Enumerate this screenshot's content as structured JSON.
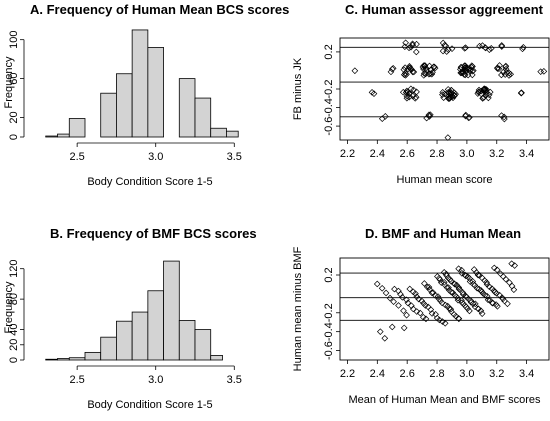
{
  "chart_data": [
    {
      "id": "A",
      "type": "bar",
      "title": "A. Frequency of Human Mean BCS scores",
      "xlabel": "Body Condition Score 1-5",
      "ylabel": "Frequency",
      "xlim": [
        2.2,
        3.6
      ],
      "ylim": [
        0,
        112
      ],
      "x_ticks": [
        2.5,
        3.0,
        3.5
      ],
      "x_tick_labels": [
        "2.5",
        "3.0",
        "3.5"
      ],
      "y_ticks": [
        0,
        20,
        60,
        100
      ],
      "y_tick_labels": [
        "0",
        "20",
        "60",
        "100"
      ],
      "bin_edges": [
        2.3,
        2.375,
        2.45,
        2.55,
        2.65,
        2.75,
        2.85,
        2.95,
        3.05,
        3.15,
        3.25,
        3.35,
        3.45
      ],
      "values": [
        1,
        3,
        19,
        0,
        45,
        65,
        110,
        92,
        0,
        60,
        40,
        9,
        6
      ],
      "grid": false
    },
    {
      "id": "B",
      "type": "bar",
      "title": "B. Frequency of BMF BCS scores",
      "xlabel": "Body Condition Score 1-5",
      "ylabel": "Frequency",
      "xlim": [
        2.2,
        3.6
      ],
      "ylim": [
        0,
        138
      ],
      "x_ticks": [
        2.5,
        3.0,
        3.5
      ],
      "x_tick_labels": [
        "2.5",
        "3.0",
        "3.5"
      ],
      "y_ticks": [
        0,
        20,
        40,
        80,
        120
      ],
      "y_tick_labels": [
        "0",
        "20",
        "40",
        "80",
        "120"
      ],
      "bin_edges": [
        2.3,
        2.375,
        2.45,
        2.55,
        2.65,
        2.75,
        2.85,
        2.95,
        3.05,
        3.15,
        3.25,
        3.35
      ],
      "values": [
        1,
        2,
        3,
        10,
        30,
        51,
        63,
        91,
        130,
        52,
        40,
        6
      ],
      "grid": false
    },
    {
      "id": "C",
      "type": "scatter",
      "title": "C. Human assessor aggreement",
      "xlabel": "Human mean score",
      "ylabel": "FB minus JK",
      "xlim": [
        2.15,
        3.55
      ],
      "ylim": [
        -0.75,
        0.35
      ],
      "x_ticks": [
        2.2,
        2.4,
        2.6,
        2.8,
        3.0,
        3.2,
        3.4
      ],
      "x_tick_labels": [
        "2.2",
        "2.4",
        "2.6",
        "2.8",
        "3.0",
        "3.2",
        "3.4"
      ],
      "y_ticks": [
        -0.6,
        -0.4,
        -0.2,
        0.2
      ],
      "y_tick_labels": [
        "-0.6",
        "-0.4",
        "-0.2",
        "0.2"
      ],
      "hlines": [
        0.25,
        -0.125,
        -0.5
      ],
      "clusters": [
        {
          "x": 2.25,
          "y": 0.0,
          "n": 1
        },
        {
          "x": 2.38,
          "y": -0.25,
          "n": 2
        },
        {
          "x": 2.45,
          "y": -0.5,
          "n": 2
        },
        {
          "x": 2.5,
          "y": 0.0,
          "n": 3
        },
        {
          "x": 2.62,
          "y": 0.25,
          "n": 8
        },
        {
          "x": 2.62,
          "y": 0.0,
          "n": 14
        },
        {
          "x": 2.62,
          "y": -0.25,
          "n": 16
        },
        {
          "x": 2.75,
          "y": 0.0,
          "n": 20
        },
        {
          "x": 2.75,
          "y": -0.5,
          "n": 4
        },
        {
          "x": 2.88,
          "y": 0.25,
          "n": 7
        },
        {
          "x": 2.88,
          "y": -0.25,
          "n": 24
        },
        {
          "x": 2.88,
          "y": -0.75,
          "n": 1
        },
        {
          "x": 3.0,
          "y": 0.0,
          "n": 30
        },
        {
          "x": 3.0,
          "y": -0.5,
          "n": 4
        },
        {
          "x": 3.0,
          "y": 0.25,
          "n": 2
        },
        {
          "x": 3.12,
          "y": 0.25,
          "n": 6
        },
        {
          "x": 3.12,
          "y": -0.25,
          "n": 22
        },
        {
          "x": 3.25,
          "y": 0.0,
          "n": 14
        },
        {
          "x": 3.25,
          "y": -0.5,
          "n": 3
        },
        {
          "x": 3.25,
          "y": 0.25,
          "n": 2
        },
        {
          "x": 3.38,
          "y": -0.25,
          "n": 3
        },
        {
          "x": 3.38,
          "y": 0.25,
          "n": 2
        },
        {
          "x": 3.5,
          "y": 0.0,
          "n": 2
        }
      ],
      "grid": false
    },
    {
      "id": "D",
      "type": "scatter",
      "title": "D. BMF and Human Mean",
      "xlabel": "Mean of Human Mean and BMF scores",
      "ylabel": "Human mean minus BMF",
      "xlim": [
        2.15,
        3.55
      ],
      "ylim": [
        -0.7,
        0.38
      ],
      "x_ticks": [
        2.2,
        2.4,
        2.6,
        2.8,
        3.0,
        3.2,
        3.4
      ],
      "x_tick_labels": [
        "2.2",
        "2.4",
        "2.6",
        "2.8",
        "3.0",
        "3.2",
        "3.4"
      ],
      "y_ticks": [
        -0.6,
        -0.4,
        -0.2,
        0.2
      ],
      "y_tick_labels": [
        "-0.6",
        "-0.4",
        "-0.2",
        "0.2"
      ],
      "hlines": [
        0.22,
        -0.04,
        -0.28
      ],
      "bands": [
        {
          "x_start": 2.4,
          "x_end": 2.6,
          "y_start": 0.1,
          "y_end": -0.22,
          "n": 8
        },
        {
          "x_start": 2.52,
          "x_end": 2.72,
          "y_start": 0.05,
          "y_end": -0.27,
          "n": 12
        },
        {
          "x_start": 2.62,
          "x_end": 2.85,
          "y_start": 0.05,
          "y_end": -0.32,
          "n": 16
        },
        {
          "x_start": 2.72,
          "x_end": 2.95,
          "y_start": 0.1,
          "y_end": -0.27,
          "n": 20
        },
        {
          "x_start": 2.8,
          "x_end": 3.02,
          "y_start": 0.18,
          "y_end": -0.18,
          "n": 22
        },
        {
          "x_start": 2.85,
          "x_end": 3.1,
          "y_start": 0.22,
          "y_end": -0.2,
          "n": 26
        },
        {
          "x_start": 2.95,
          "x_end": 3.2,
          "y_start": 0.26,
          "y_end": -0.14,
          "n": 24
        },
        {
          "x_start": 3.05,
          "x_end": 3.27,
          "y_start": 0.25,
          "y_end": -0.1,
          "n": 18
        },
        {
          "x_start": 3.18,
          "x_end": 3.32,
          "y_start": 0.28,
          "y_end": 0.05,
          "n": 8
        }
      ],
      "extra_points": [
        {
          "x": 2.45,
          "y": -0.47
        },
        {
          "x": 2.42,
          "y": -0.4
        },
        {
          "x": 2.5,
          "y": -0.35
        },
        {
          "x": 2.58,
          "y": -0.36
        },
        {
          "x": 3.3,
          "y": 0.32
        },
        {
          "x": 3.32,
          "y": 0.3
        }
      ],
      "grid": false
    }
  ]
}
